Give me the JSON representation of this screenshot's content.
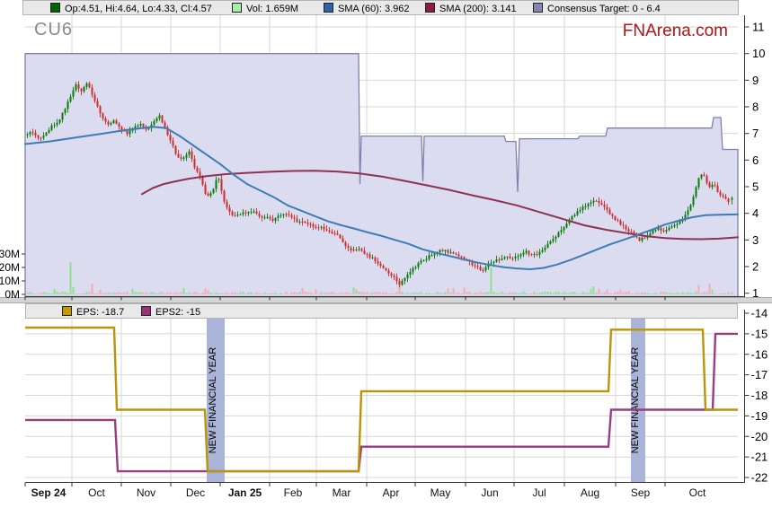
{
  "ticker": "CU6",
  "watermark": "FNArena.com",
  "colors": {
    "grid": "#d7d7d7",
    "axis_line": "#333333",
    "label": "#000000",
    "consensus_fill": "#dcdcf1",
    "consensus_edge": "#8080ac",
    "candle_up": "#087d08",
    "candle_down": "#cf2b2b",
    "vol_up": "#8fe08f",
    "vol_down": "#f6adad",
    "sma60": "#3d7cb4",
    "sma200": "#8e3152",
    "eps": "#b99508",
    "eps2": "#9a3c80",
    "nfy_band": "#aab4d9",
    "ticker_color": "#8a8a8a",
    "watermark_color": "#b01414"
  },
  "legend_top": [
    {
      "label": "Op:4.51, Hi:4.64, Lo:4.33, Cl:4.57",
      "swatch": "#006400",
      "x": 30
    },
    {
      "label": "Vol: 1.659M",
      "swatch": "#a8f0a8",
      "x": 232
    },
    {
      "label": "SMA (60): 3.962",
      "swatch": "#2b62a8",
      "x": 334
    },
    {
      "label": "SMA (200): 3.141",
      "swatch": "#8b1e3e",
      "x": 447
    },
    {
      "label": "Consensus Target: 0 - 6.4",
      "swatch": "#8585b5",
      "x": 567
    }
  ],
  "legend_eps": [
    {
      "label": "EPS: -18.7",
      "swatch": "#c39b00",
      "x": 40
    },
    {
      "label": "EPS2: -15",
      "swatch": "#993377",
      "x": 128
    }
  ],
  "months": [
    {
      "label": "Sep 24",
      "x": 28,
      "bold": true
    },
    {
      "label": "Oct",
      "x": 80,
      "bold": false
    },
    {
      "label": "Nov",
      "x": 135,
      "bold": false
    },
    {
      "label": "Dec",
      "x": 190,
      "bold": false
    },
    {
      "label": "Jan 25",
      "x": 245,
      "bold": true
    },
    {
      "label": "Feb",
      "x": 300,
      "bold": false
    },
    {
      "label": "Mar",
      "x": 352,
      "bold": false
    },
    {
      "label": "Apr",
      "x": 408,
      "bold": false
    },
    {
      "label": "May",
      "x": 462,
      "bold": false
    },
    {
      "label": "Jun",
      "x": 518,
      "bold": false
    },
    {
      "label": "Jul",
      "x": 572,
      "bold": false
    },
    {
      "label": "Aug",
      "x": 628,
      "bold": false
    },
    {
      "label": "Sep",
      "x": 685,
      "bold": false
    },
    {
      "label": "Oct",
      "x": 740,
      "bold": false
    }
  ],
  "chart_data": [
    {
      "type": "candlestick",
      "panel": "price",
      "title": "CU6 daily price with SMA and consensus target band",
      "y_ticks": [
        11,
        10,
        9,
        8,
        7,
        6,
        5,
        4,
        3,
        2,
        1
      ],
      "ylim": [
        0.8,
        11.4
      ],
      "x_axis": "Sep 2024 - Oct 2025, daily",
      "last_candle": {
        "open": 4.51,
        "high": 4.64,
        "low": 4.33,
        "close": 4.57,
        "volume_label": "1.659M"
      },
      "close_path": [
        [
          28,
          6.9
        ],
        [
          35,
          7.1
        ],
        [
          42,
          6.8
        ],
        [
          50,
          7.0
        ],
        [
          58,
          7.3
        ],
        [
          65,
          7.5
        ],
        [
          72,
          7.9
        ],
        [
          78,
          8.4
        ],
        [
          84,
          8.85
        ],
        [
          90,
          8.55
        ],
        [
          96,
          8.9
        ],
        [
          102,
          8.5
        ],
        [
          108,
          8.0
        ],
        [
          114,
          7.6
        ],
        [
          120,
          7.3
        ],
        [
          127,
          7.5
        ],
        [
          134,
          7.15
        ],
        [
          141,
          7.0
        ],
        [
          148,
          7.2
        ],
        [
          155,
          7.35
        ],
        [
          162,
          7.1
        ],
        [
          170,
          7.4
        ],
        [
          177,
          7.7
        ],
        [
          183,
          7.2
        ],
        [
          190,
          6.7
        ],
        [
          197,
          6.1
        ],
        [
          204,
          6.05
        ],
        [
          210,
          6.3
        ],
        [
          216,
          5.7
        ],
        [
          222,
          5.35
        ],
        [
          229,
          4.6
        ],
        [
          236,
          4.8
        ],
        [
          242,
          5.5
        ],
        [
          248,
          4.5
        ],
        [
          254,
          4.05
        ],
        [
          262,
          3.9
        ],
        [
          270,
          4.0
        ],
        [
          278,
          4.1
        ],
        [
          286,
          3.95
        ],
        [
          294,
          3.85
        ],
        [
          302,
          3.75
        ],
        [
          310,
          3.9
        ],
        [
          318,
          4.0
        ],
        [
          326,
          3.8
        ],
        [
          334,
          3.65
        ],
        [
          342,
          3.6
        ],
        [
          350,
          3.5
        ],
        [
          358,
          3.45
        ],
        [
          366,
          3.3
        ],
        [
          374,
          3.2
        ],
        [
          382,
          2.85
        ],
        [
          390,
          2.6
        ],
        [
          398,
          2.65
        ],
        [
          406,
          2.45
        ],
        [
          414,
          2.3
        ],
        [
          422,
          2.05
        ],
        [
          430,
          1.85
        ],
        [
          438,
          1.6
        ],
        [
          444,
          1.35
        ],
        [
          450,
          1.6
        ],
        [
          456,
          1.8
        ],
        [
          462,
          2.0
        ],
        [
          468,
          2.2
        ],
        [
          474,
          2.3
        ],
        [
          480,
          2.45
        ],
        [
          487,
          2.55
        ],
        [
          494,
          2.65
        ],
        [
          501,
          2.5
        ],
        [
          508,
          2.4
        ],
        [
          515,
          2.3
        ],
        [
          522,
          2.15
        ],
        [
          529,
          2.0
        ],
        [
          536,
          1.85
        ],
        [
          543,
          2.1
        ],
        [
          550,
          2.2
        ],
        [
          557,
          2.3
        ],
        [
          564,
          2.4
        ],
        [
          571,
          2.3
        ],
        [
          578,
          2.45
        ],
        [
          585,
          2.55
        ],
        [
          592,
          2.4
        ],
        [
          599,
          2.5
        ],
        [
          606,
          2.7
        ],
        [
          613,
          2.95
        ],
        [
          620,
          3.25
        ],
        [
          627,
          3.5
        ],
        [
          634,
          3.8
        ],
        [
          641,
          4.05
        ],
        [
          648,
          4.25
        ],
        [
          655,
          4.4
        ],
        [
          662,
          4.5
        ],
        [
          669,
          4.35
        ],
        [
          676,
          4.05
        ],
        [
          683,
          3.8
        ],
        [
          690,
          3.6
        ],
        [
          697,
          3.4
        ],
        [
          704,
          3.2
        ],
        [
          711,
          3.0
        ],
        [
          718,
          3.1
        ],
        [
          725,
          3.3
        ],
        [
          732,
          3.45
        ],
        [
          739,
          3.3
        ],
        [
          746,
          3.5
        ],
        [
          753,
          3.65
        ],
        [
          760,
          3.85
        ],
        [
          767,
          4.2
        ],
        [
          772,
          4.7
        ],
        [
          777,
          5.3
        ],
        [
          781,
          5.55
        ],
        [
          785,
          5.2
        ],
        [
          789,
          4.95
        ],
        [
          793,
          5.15
        ],
        [
          797,
          4.9
        ],
        [
          801,
          4.7
        ],
        [
          805,
          4.55
        ],
        [
          809,
          4.45
        ],
        [
          814,
          4.57
        ]
      ],
      "series": [
        {
          "name": "SMA (60)",
          "last": 3.962,
          "points": [
            [
              28,
              6.6
            ],
            [
              55,
              6.7
            ],
            [
              85,
              6.85
            ],
            [
              115,
              7.0
            ],
            [
              145,
              7.15
            ],
            [
              170,
              7.25
            ],
            [
              185,
              7.2
            ],
            [
              200,
              6.9
            ],
            [
              215,
              6.55
            ],
            [
              230,
              6.2
            ],
            [
              245,
              5.85
            ],
            [
              260,
              5.45
            ],
            [
              275,
              5.1
            ],
            [
              290,
              4.85
            ],
            [
              305,
              4.6
            ],
            [
              320,
              4.3
            ],
            [
              335,
              4.1
            ],
            [
              350,
              3.9
            ],
            [
              365,
              3.7
            ],
            [
              380,
              3.55
            ],
            [
              395,
              3.42
            ],
            [
              410,
              3.28
            ],
            [
              425,
              3.15
            ],
            [
              440,
              3.0
            ],
            [
              455,
              2.85
            ],
            [
              470,
              2.65
            ],
            [
              485,
              2.52
            ],
            [
              500,
              2.4
            ],
            [
              515,
              2.28
            ],
            [
              530,
              2.16
            ],
            [
              545,
              2.06
            ],
            [
              560,
              1.98
            ],
            [
              575,
              1.93
            ],
            [
              590,
              1.9
            ],
            [
              605,
              1.95
            ],
            [
              620,
              2.08
            ],
            [
              635,
              2.25
            ],
            [
              650,
              2.45
            ],
            [
              665,
              2.65
            ],
            [
              680,
              2.85
            ],
            [
              695,
              3.02
            ],
            [
              710,
              3.2
            ],
            [
              725,
              3.38
            ],
            [
              740,
              3.58
            ],
            [
              755,
              3.72
            ],
            [
              770,
              3.85
            ],
            [
              785,
              3.93
            ],
            [
              800,
              3.95
            ],
            [
              821,
              3.96
            ]
          ]
        },
        {
          "name": "SMA (200)",
          "last": 3.141,
          "points": [
            [
              158,
              4.72
            ],
            [
              170,
              4.95
            ],
            [
              182,
              5.1
            ],
            [
              195,
              5.2
            ],
            [
              210,
              5.3
            ],
            [
              230,
              5.4
            ],
            [
              250,
              5.47
            ],
            [
              275,
              5.52
            ],
            [
              300,
              5.56
            ],
            [
              325,
              5.59
            ],
            [
              350,
              5.6
            ],
            [
              375,
              5.57
            ],
            [
              400,
              5.5
            ],
            [
              425,
              5.38
            ],
            [
              450,
              5.22
            ],
            [
              475,
              5.05
            ],
            [
              500,
              4.88
            ],
            [
              525,
              4.68
            ],
            [
              550,
              4.5
            ],
            [
              575,
              4.3
            ],
            [
              600,
              4.05
            ],
            [
              625,
              3.8
            ],
            [
              650,
              3.55
            ],
            [
              675,
              3.38
            ],
            [
              700,
              3.24
            ],
            [
              720,
              3.14
            ],
            [
              740,
              3.07
            ],
            [
              760,
              3.04
            ],
            [
              780,
              3.03
            ],
            [
              800,
              3.05
            ],
            [
              821,
              3.1
            ]
          ]
        },
        {
          "name": "Consensus Target",
          "range_label": "0 - 6.4",
          "points": [
            [
              28,
              10
            ],
            [
              399,
              10
            ],
            [
              400.5,
              5.1
            ],
            [
              402,
              6.9
            ],
            [
              469,
              6.9
            ],
            [
              470.5,
              5.2
            ],
            [
              472,
              6.9
            ],
            [
              561,
              6.9
            ],
            [
              563,
              6.7
            ],
            [
              574,
              6.7
            ],
            [
              576,
              4.8
            ],
            [
              578,
              6.8
            ],
            [
              643,
              6.8
            ],
            [
              645,
              6.9
            ],
            [
              674,
              6.9
            ],
            [
              676,
              7.2
            ],
            [
              792,
              7.2
            ],
            [
              794,
              7.6
            ],
            [
              802,
              7.6
            ],
            [
              804,
              6.4
            ],
            [
              821,
              6.4
            ]
          ]
        }
      ],
      "volume": {
        "ticks": [
          "30M",
          "20M",
          "10M",
          "0M"
        ],
        "typical_range_m": [
          0.4,
          4
        ],
        "spikes": [
          [
            79,
            24,
            1
          ],
          [
            103,
            8,
            0
          ],
          [
            444,
            11,
            0
          ],
          [
            546,
            20,
            1
          ],
          [
            661,
            6,
            1
          ],
          [
            777,
            7,
            0
          ],
          [
            789,
            8,
            0
          ]
        ]
      }
    },
    {
      "type": "step_line",
      "panel": "eps",
      "title": "EPS forecasts",
      "y_ticks": [
        -14,
        -15,
        -16,
        -17,
        -18,
        -19,
        -20,
        -21,
        -22
      ],
      "series": [
        {
          "name": "EPS",
          "current": -18.7,
          "steps": [
            [
              28,
              -14.7
            ],
            [
              127,
              -18.7
            ],
            [
              228,
              -21.7
            ],
            [
              399,
              -17.8
            ],
            [
              677,
              -14.8
            ],
            [
              782,
              -18.7
            ]
          ]
        },
        {
          "name": "EPS2",
          "current": -15,
          "steps": [
            [
              28,
              -19.2
            ],
            [
              128,
              -21.7
            ],
            [
              399,
              -20.5
            ],
            [
              677,
              -18.7
            ],
            [
              793,
              -15
            ]
          ]
        }
      ],
      "bands": [
        {
          "label": "NEW FINANCIAL YEAR",
          "x": 230,
          "width": 20
        },
        {
          "label": "NEW FINANCIAL YEAR",
          "x": 702,
          "width": 16
        }
      ]
    }
  ]
}
